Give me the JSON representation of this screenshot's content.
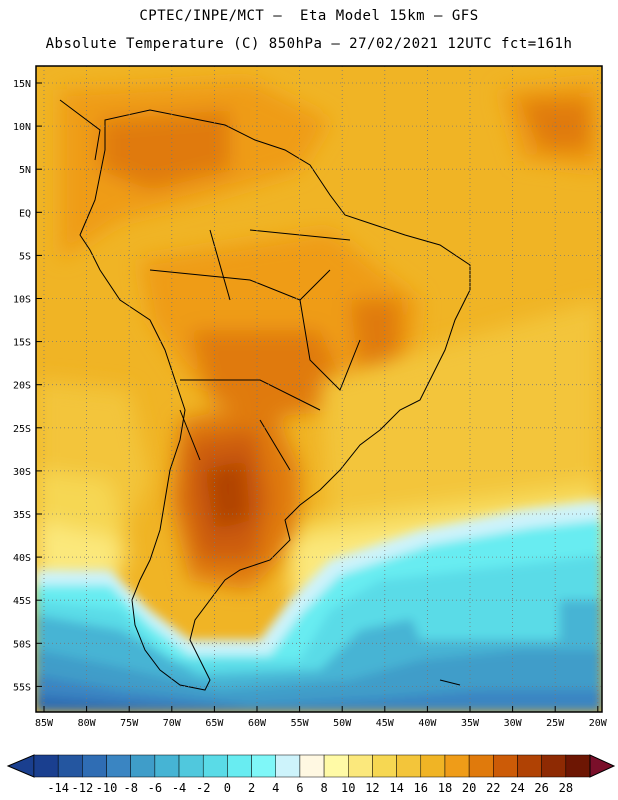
{
  "header": {
    "line1": "CPTEC/INPE/MCT –  Eta Model 15km – GFS",
    "line2": "Absolute Temperature (C) 850hPa – 27/02/2021 12UTC fct=161h"
  },
  "map": {
    "region": "South America",
    "lat_labels": [
      "15N",
      "10N",
      "5N",
      "EQ",
      "5S",
      "10S",
      "15S",
      "20S",
      "25S",
      "30S",
      "35S",
      "40S",
      "45S",
      "50S",
      "55S"
    ],
    "lon_labels": [
      "85W",
      "80W",
      "75W",
      "70W",
      "65W",
      "60W",
      "55W",
      "50W",
      "45W",
      "40W",
      "35W",
      "30W",
      "25W",
      "20W"
    ],
    "gridlines": "dotted"
  },
  "colorbar": {
    "ticks": [
      "-14",
      "-12",
      "-10",
      "-8",
      "-6",
      "-4",
      "-2",
      "0",
      "2",
      "4",
      "6",
      "8",
      "10",
      "12",
      "14",
      "16",
      "18",
      "20",
      "22",
      "24",
      "26",
      "28"
    ],
    "colors": [
      "#1a3f8f",
      "#2456a0",
      "#2f6db4",
      "#3a85c2",
      "#3f9dc9",
      "#46b4d4",
      "#50c8dd",
      "#5adbe7",
      "#68ecf1",
      "#7ff7f8",
      "#cdf3fb",
      "#fff8e2",
      "#fffaa6",
      "#fbe87c",
      "#f6d752",
      "#f3c53a",
      "#f0b425",
      "#ef9c18",
      "#e07a0c",
      "#cc5b07",
      "#b04204",
      "#8e2a03",
      "#6d1603"
    ]
  }
}
